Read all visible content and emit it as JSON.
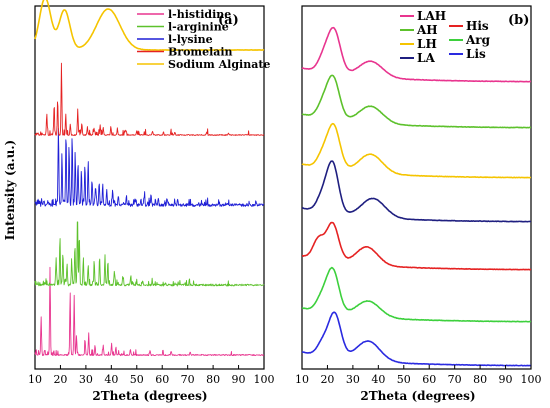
{
  "chart_data": [
    {
      "type": "line",
      "panel_label": "(a)",
      "xlabel": "2Theta (degrees)",
      "ylabel": "Intensity (a.u.)",
      "xlim": [
        10,
        100
      ],
      "xticks": [
        "10",
        "20",
        "30",
        "40",
        "50",
        "60",
        "70",
        "80",
        "90",
        "100"
      ],
      "legend_position": "top-right",
      "series": [
        {
          "name": "l-histidine",
          "color": "#e8358f",
          "style": "sharp",
          "seed": 11,
          "noise": 1.2,
          "density": 0.18,
          "peaks": [
            [
              12.4,
              38
            ],
            [
              15.9,
              88
            ],
            [
              23.8,
              58
            ],
            [
              25.4,
              60
            ],
            [
              26.3,
              20
            ],
            [
              29.7,
              14
            ],
            [
              31.1,
              22
            ],
            [
              33.6,
              9
            ],
            [
              36.8,
              10
            ],
            [
              40.1,
              12
            ],
            [
              41.8,
              8
            ],
            [
              47.5,
              6
            ],
            [
              55.2,
              5
            ],
            [
              63.5,
              4
            ],
            [
              71.0,
              3
            ]
          ]
        },
        {
          "name": "l-arginine",
          "color": "#5dc12c",
          "style": "sharp",
          "seed": 23,
          "noise": 2.0,
          "density": 0.35,
          "peaks": [
            [
              18.3,
              28
            ],
            [
              19.8,
              48
            ],
            [
              21.0,
              30
            ],
            [
              22.6,
              22
            ],
            [
              24.4,
              24
            ],
            [
              25.7,
              38
            ],
            [
              26.7,
              72
            ],
            [
              27.4,
              52
            ],
            [
              29.0,
              28
            ],
            [
              30.9,
              20
            ],
            [
              33.3,
              22
            ],
            [
              35.4,
              26
            ],
            [
              37.5,
              30
            ],
            [
              38.6,
              22
            ],
            [
              41.2,
              14
            ],
            [
              44.5,
              9
            ],
            [
              47.6,
              7
            ],
            [
              52.3,
              5
            ],
            [
              56.0,
              4
            ],
            [
              61.3,
              3
            ]
          ]
        },
        {
          "name": "l-lysine",
          "color": "#1f1fd6",
          "style": "sharp",
          "seed": 37,
          "noise": 3.0,
          "density": 0.55,
          "peaks": [
            [
              19.2,
              78
            ],
            [
              20.6,
              52
            ],
            [
              22.2,
              72
            ],
            [
              23.4,
              58
            ],
            [
              24.6,
              66
            ],
            [
              25.8,
              50
            ],
            [
              26.9,
              40
            ],
            [
              28.2,
              34
            ],
            [
              29.6,
              38
            ],
            [
              30.9,
              46
            ],
            [
              32.4,
              26
            ],
            [
              33.8,
              20
            ],
            [
              35.2,
              24
            ],
            [
              36.6,
              18
            ],
            [
              38.2,
              16
            ],
            [
              40.5,
              14
            ],
            [
              42.8,
              10
            ],
            [
              45.9,
              8
            ],
            [
              49.3,
              7
            ],
            [
              53.0,
              9
            ],
            [
              55.6,
              12
            ],
            [
              58.4,
              6
            ],
            [
              62.0,
              5
            ],
            [
              66.0,
              4
            ],
            [
              70.5,
              3
            ]
          ]
        },
        {
          "name": "Bromelain",
          "color": "#e52222",
          "style": "sharp",
          "seed": 53,
          "noise": 1.0,
          "density": 0.18,
          "peaks": [
            [
              14.6,
              18
            ],
            [
              17.5,
              28
            ],
            [
              18.9,
              35
            ],
            [
              20.4,
              72
            ],
            [
              22.1,
              18
            ],
            [
              23.9,
              10
            ],
            [
              26.8,
              26
            ],
            [
              28.4,
              12
            ],
            [
              30.6,
              8
            ],
            [
              33.2,
              7
            ],
            [
              35.6,
              10
            ],
            [
              36.8,
              8
            ],
            [
              39.8,
              9
            ],
            [
              42.4,
              6
            ],
            [
              45.5,
              5
            ],
            [
              50.0,
              4
            ],
            [
              56.2,
              4
            ],
            [
              60.5,
              3
            ],
            [
              65.0,
              3
            ],
            [
              77.5,
              3
            ],
            [
              86.0,
              2
            ]
          ]
        },
        {
          "name": "Sodium Alginate",
          "color": "#f5c400",
          "style": "broad",
          "seed": 71,
          "noise": 0.3,
          "peaks": [
            [
              14.0,
              52,
              3.2
            ],
            [
              21.6,
              40,
              3.0
            ],
            [
              38.8,
              41,
              6.5
            ]
          ]
        }
      ],
      "offsets": [
        355,
        285,
        205,
        135,
        50
      ]
    },
    {
      "type": "line",
      "panel_label": "(b)",
      "xlabel": "2Theta (degrees)",
      "xlim": [
        10,
        100
      ],
      "xticks": [
        "10",
        "20",
        "30",
        "40",
        "50",
        "60",
        "70",
        "80",
        "90",
        "100"
      ],
      "legend_position": "top-left",
      "series": [
        {
          "name": "LAH",
          "color": "#e8358f",
          "style": "broad",
          "seed": 5,
          "noise": 0.4,
          "peaks": [
            [
              22.5,
              44,
              3.6
            ],
            [
              18.2,
              12,
              3.0
            ],
            [
              37.0,
              16,
              6.5
            ]
          ]
        },
        {
          "name": "AH",
          "color": "#5dc12c",
          "style": "broad",
          "seed": 6,
          "noise": 0.4,
          "peaks": [
            [
              22.2,
              42,
              3.5
            ],
            [
              18.0,
              12,
              3.0
            ],
            [
              37.0,
              17,
              6.5
            ]
          ]
        },
        {
          "name": "LH",
          "color": "#f5c400",
          "style": "broad",
          "seed": 7,
          "noise": 0.4,
          "peaks": [
            [
              22.4,
              44,
              3.5
            ],
            [
              18.0,
              12,
              3.0
            ],
            [
              37.0,
              19,
              6.5
            ]
          ]
        },
        {
          "name": "LA",
          "color": "#1f1f80",
          "style": "broad",
          "seed": 8,
          "noise": 0.4,
          "peaks": [
            [
              22.0,
              50,
              3.3
            ],
            [
              17.8,
              14,
              3.0
            ],
            [
              38.0,
              19,
              6.5
            ]
          ]
        },
        {
          "name": "His",
          "color": "#e52222",
          "style": "broad",
          "seed": 9,
          "noise": 0.4,
          "peaks": [
            [
              22.0,
              38,
              3.4
            ],
            [
              16.5,
              20,
              3.0
            ],
            [
              35.5,
              18,
              6.0
            ]
          ]
        },
        {
          "name": "Arg",
          "color": "#3dd03d",
          "style": "broad",
          "seed": 10,
          "noise": 0.4,
          "peaks": [
            [
              22.0,
              44,
              3.5
            ],
            [
              17.5,
              12,
              3.0
            ],
            [
              36.0,
              16,
              6.5
            ]
          ]
        },
        {
          "name": "Lis",
          "color": "#2a2ae0",
          "style": "broad",
          "seed": 12,
          "noise": 0.4,
          "peaks": [
            [
              22.8,
              44,
              3.5
            ],
            [
              18.0,
              12,
              3.0
            ],
            [
              36.0,
              20,
              6.5
            ]
          ]
        }
      ],
      "offsets": [
        82,
        128,
        178,
        222,
        270,
        322,
        366
      ]
    }
  ]
}
